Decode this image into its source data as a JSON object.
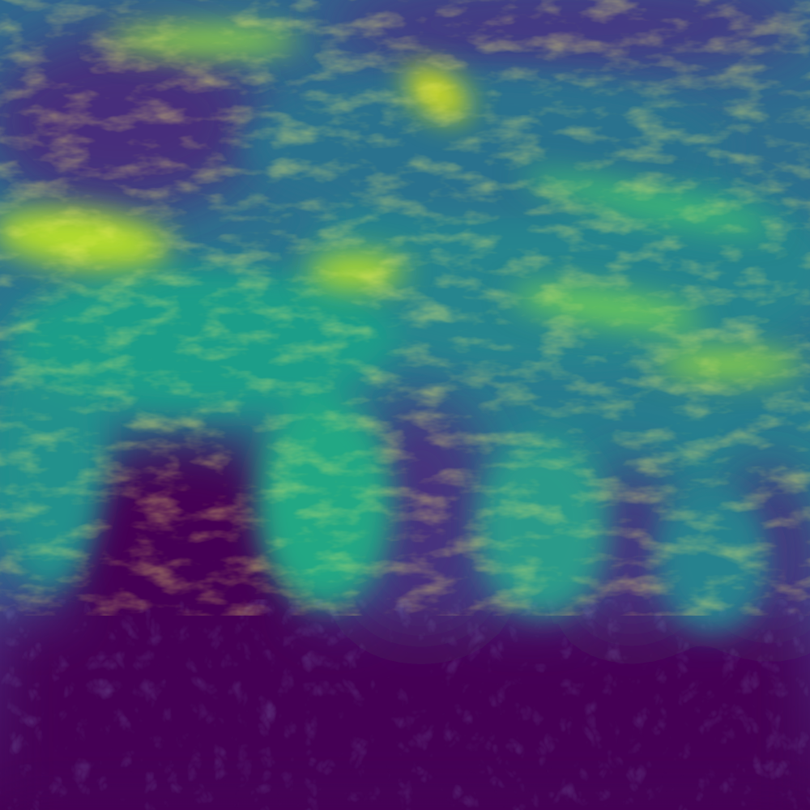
{
  "image": {
    "kind": "scalar-field heatmap (viridis colormap), no visible text, axes or legend",
    "colormap": [
      "#440154",
      "#482878",
      "#3e4989",
      "#31688e",
      "#26828e",
      "#1f9e89",
      "#35b779",
      "#6ece58",
      "#b5de2b",
      "#fde725"
    ]
  }
}
